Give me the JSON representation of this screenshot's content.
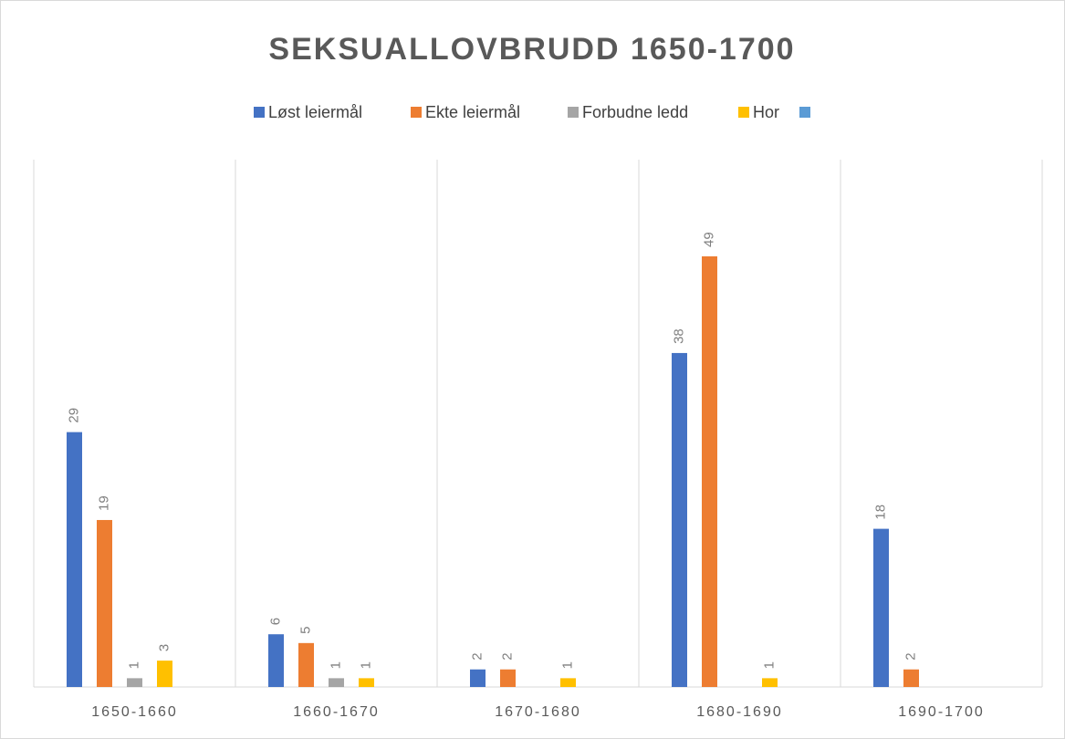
{
  "chart_data": {
    "type": "bar",
    "title": "SEKSUALLOVBRUDD 1650-1700",
    "categories": [
      "1650-1660",
      "1660-1670",
      "1670-1680",
      "1680-1690",
      "1690-1700"
    ],
    "series": [
      {
        "name": "Løst leiermål",
        "color": "#4472c4",
        "values": [
          29,
          6,
          2,
          38,
          18
        ]
      },
      {
        "name": "Ekte leiermål",
        "color": "#ed7d31",
        "values": [
          19,
          5,
          2,
          49,
          2
        ]
      },
      {
        "name": "Forbudne ledd",
        "color": "#a5a5a5",
        "values": [
          1,
          1,
          null,
          null,
          null
        ]
      },
      {
        "name": "Hor",
        "color": "#ffc000",
        "values": [
          3,
          1,
          1,
          1,
          null
        ]
      },
      {
        "color": "#5b9bd5",
        "values": [
          null,
          null,
          null,
          null,
          null
        ]
      }
    ],
    "ylim": [
      0,
      60
    ],
    "legend": "top",
    "data_labels": true
  }
}
